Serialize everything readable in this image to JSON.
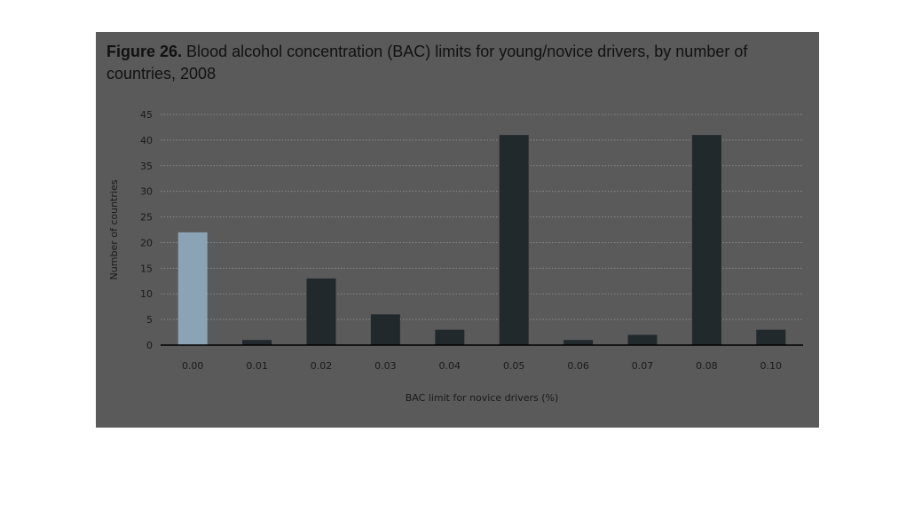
{
  "figure": {
    "label": "Figure 26.",
    "title": "Blood alcohol concentration (BAC) limits for young/novice drivers, by number of countries, 2008"
  },
  "colors": {
    "panel_background": "#5a5a5a",
    "bar": "#22292d",
    "bar_highlight": "#8aa3b5",
    "gridline": "#8a8a8a",
    "axis": "#000000",
    "text": "#1a1a1a"
  },
  "chart_data": {
    "type": "bar",
    "title": "Blood alcohol concentration (BAC) limits for young/novice drivers, by number of countries, 2008",
    "xlabel": "BAC limit for novice drivers (%)",
    "ylabel": "Number of countries",
    "categories": [
      "0.00",
      "0.01",
      "0.02",
      "0.03",
      "0.04",
      "0.05",
      "0.06",
      "0.07",
      "0.08",
      "0.10"
    ],
    "values": [
      22,
      1,
      13,
      6,
      3,
      41,
      1,
      2,
      41,
      3
    ],
    "ylim": [
      0,
      45
    ],
    "yticks": [
      0,
      5,
      10,
      15,
      20,
      25,
      30,
      35,
      40,
      45
    ],
    "grid": true,
    "grid_style": "dotted-horizontal"
  }
}
